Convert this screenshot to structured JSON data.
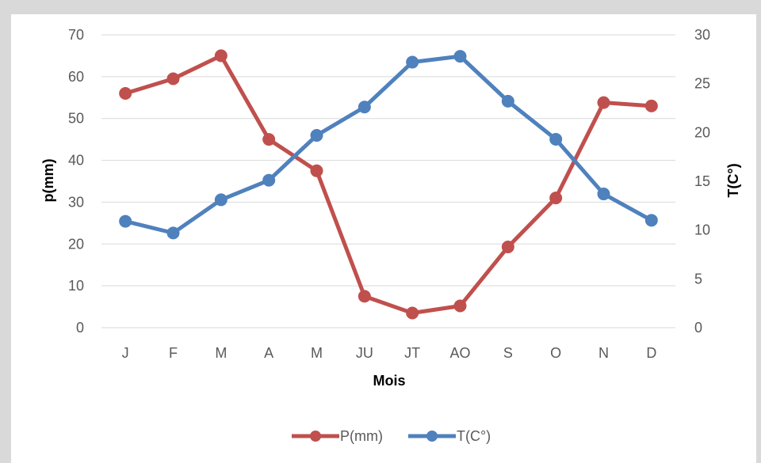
{
  "chart_data": {
    "type": "line",
    "title": "",
    "categories": [
      "J",
      "F",
      "M",
      "A",
      "M",
      "JU",
      "JT",
      "AO",
      "S",
      "O",
      "N",
      "D"
    ],
    "xlabel": "Mois",
    "ylabel": "p(mm)",
    "y2label": "T(C°)",
    "ylim": [
      0,
      70
    ],
    "y2lim": [
      0,
      30
    ],
    "yticks": [
      "0",
      "10",
      "20",
      "30",
      "40",
      "50",
      "60",
      "70"
    ],
    "y2ticks": [
      "0",
      "5",
      "10",
      "15",
      "20",
      "25",
      "30"
    ],
    "grid": true,
    "legend_position": "bottom",
    "series": [
      {
        "name": "P(mm)",
        "axis": "left",
        "color": "#c0504d",
        "values": [
          56,
          59.5,
          65,
          45,
          37.5,
          7.5,
          3.5,
          5.2,
          19.3,
          31,
          53.8,
          53
        ]
      },
      {
        "name": "T(C°)",
        "axis": "right",
        "color": "#4f81bd",
        "values": [
          10.9,
          9.7,
          13.1,
          15.1,
          19.7,
          22.6,
          27.2,
          27.8,
          23.2,
          19.3,
          13.7,
          11
        ]
      }
    ]
  }
}
